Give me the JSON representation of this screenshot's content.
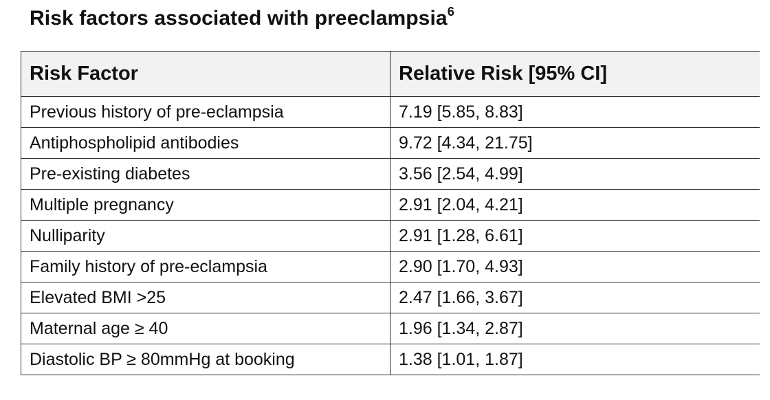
{
  "title": {
    "text": "Risk factors associated with preeclampsia",
    "superscript": "6"
  },
  "table": {
    "headers": [
      "Risk Factor",
      "Relative Risk [95% CI]"
    ],
    "rows": [
      {
        "factor": "Previous history of pre-eclampsia",
        "risk": "7.19 [5.85, 8.83]"
      },
      {
        "factor": "Antiphospholipid antibodies",
        "risk": "9.72 [4.34, 21.75]"
      },
      {
        "factor": "Pre-existing diabetes",
        "risk": "3.56 [2.54, 4.99]"
      },
      {
        "factor": "Multiple pregnancy",
        "risk": "2.91 [2.04, 4.21]"
      },
      {
        "factor": "Nulliparity",
        "risk": "2.91 [1.28, 6.61]"
      },
      {
        "factor": "Family history of pre-eclampsia",
        "risk": "2.90 [1.70, 4.93]"
      },
      {
        "factor": "Elevated BMI >25",
        "risk": "2.47 [1.66, 3.67]"
      },
      {
        "factor": "Maternal age ≥ 40",
        "risk": "1.96 [1.34, 2.87]"
      },
      {
        "factor": "Diastolic BP ≥ 80mmHg at booking",
        "risk": "1.38 [1.01, 1.87]"
      }
    ]
  }
}
